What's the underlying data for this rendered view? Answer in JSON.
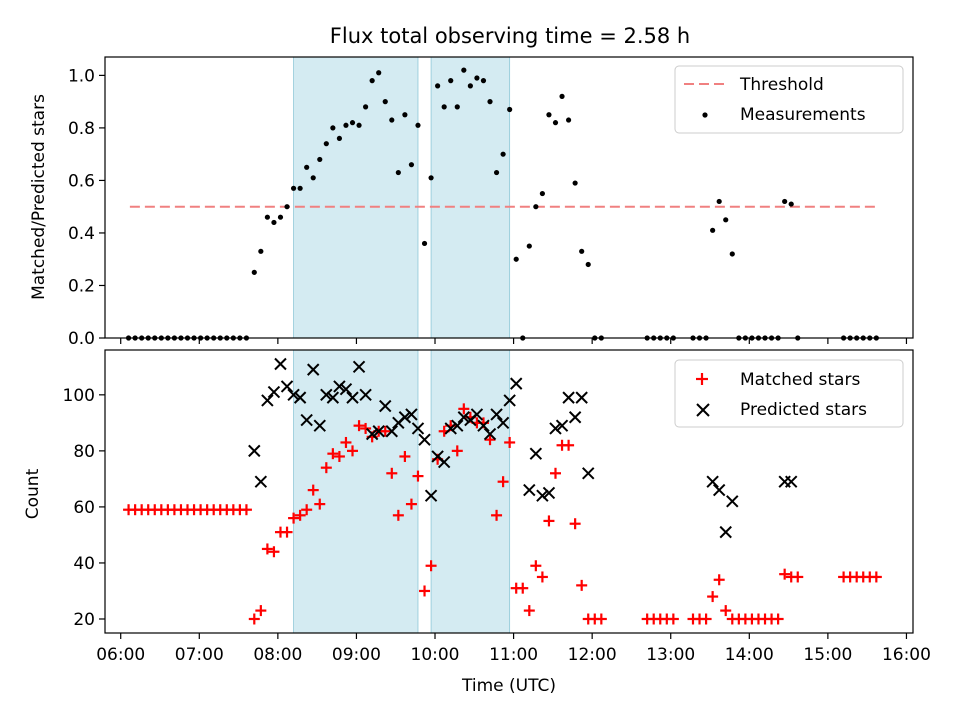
{
  "title": "Flux total observing time = 2.58 h",
  "xlabel": "Time (UTC)",
  "x_ticks": [
    "06:00",
    "07:00",
    "08:00",
    "09:00",
    "10:00",
    "11:00",
    "12:00",
    "13:00",
    "14:00",
    "15:00",
    "16:00"
  ],
  "colors": {
    "threshold": "#f08080",
    "measurement": "#000000",
    "matched": "#ff0000",
    "predicted": "#000000",
    "span": "#add8e6"
  },
  "chart_data": [
    {
      "type": "scatter",
      "ylabel": "Matched/Predicted stars",
      "xlim": [
        "05:48",
        "16:05"
      ],
      "ylim": [
        0,
        1.07
      ],
      "y_ticks": [
        "0.0",
        "0.2",
        "0.4",
        "0.6",
        "0.8",
        "1.0"
      ],
      "shaded_spans": [
        [
          "08:12",
          "09:47"
        ],
        [
          "09:57",
          "10:57"
        ]
      ],
      "threshold": {
        "name": "Threshold",
        "value": 0.5,
        "x_range": [
          "06:07",
          "15:37"
        ]
      },
      "legend": [
        "Threshold",
        "Measurements"
      ],
      "legend_position": "upper right",
      "series": [
        {
          "name": "Measurements",
          "points": [
            [
              "06:06",
              0
            ],
            [
              "06:11",
              0
            ],
            [
              "06:16",
              0
            ],
            [
              "06:21",
              0
            ],
            [
              "06:26",
              0
            ],
            [
              "06:31",
              0
            ],
            [
              "06:36",
              0
            ],
            [
              "06:41",
              0
            ],
            [
              "06:46",
              0
            ],
            [
              "06:51",
              0
            ],
            [
              "06:56",
              0
            ],
            [
              "07:01",
              0
            ],
            [
              "07:06",
              0
            ],
            [
              "07:11",
              0
            ],
            [
              "07:16",
              0
            ],
            [
              "07:21",
              0
            ],
            [
              "07:26",
              0
            ],
            [
              "07:31",
              0
            ],
            [
              "07:36",
              0
            ],
            [
              "07:42",
              0.25
            ],
            [
              "07:47",
              0.33
            ],
            [
              "07:52",
              0.46
            ],
            [
              "07:57",
              0.44
            ],
            [
              "08:02",
              0.46
            ],
            [
              "08:07",
              0.5
            ],
            [
              "08:12",
              0.57
            ],
            [
              "08:17",
              0.57
            ],
            [
              "08:22",
              0.65
            ],
            [
              "08:27",
              0.61
            ],
            [
              "08:32",
              0.68
            ],
            [
              "08:37",
              0.74
            ],
            [
              "08:42",
              0.8
            ],
            [
              "08:47",
              0.76
            ],
            [
              "08:52",
              0.81
            ],
            [
              "08:57",
              0.82
            ],
            [
              "09:02",
              0.81
            ],
            [
              "09:07",
              0.88
            ],
            [
              "09:12",
              0.98
            ],
            [
              "09:17",
              1.01
            ],
            [
              "09:22",
              0.9
            ],
            [
              "09:27",
              0.83
            ],
            [
              "09:32",
              0.63
            ],
            [
              "09:37",
              0.85
            ],
            [
              "09:42",
              0.66
            ],
            [
              "09:47",
              0.81
            ],
            [
              "09:52",
              0.36
            ],
            [
              "09:57",
              0.61
            ],
            [
              "10:02",
              0.96
            ],
            [
              "10:07",
              0.88
            ],
            [
              "10:12",
              0.98
            ],
            [
              "10:17",
              0.88
            ],
            [
              "10:22",
              1.02
            ],
            [
              "10:27",
              0.96
            ],
            [
              "10:32",
              0.99
            ],
            [
              "10:37",
              0.98
            ],
            [
              "10:42",
              0.9
            ],
            [
              "10:47",
              0.63
            ],
            [
              "10:52",
              0.7
            ],
            [
              "10:57",
              0.87
            ],
            [
              "11:02",
              0.3
            ],
            [
              "11:07",
              0
            ],
            [
              "11:12",
              0.35
            ],
            [
              "11:17",
              0.5
            ],
            [
              "11:22",
              0.55
            ],
            [
              "11:27",
              0.85
            ],
            [
              "11:32",
              0.82
            ],
            [
              "11:37",
              0.92
            ],
            [
              "11:42",
              0.83
            ],
            [
              "11:47",
              0.59
            ],
            [
              "11:52",
              0.33
            ],
            [
              "11:57",
              0.28
            ],
            [
              "12:02",
              0
            ],
            [
              "12:07",
              0
            ],
            [
              "12:42",
              0
            ],
            [
              "12:47",
              0
            ],
            [
              "12:52",
              0
            ],
            [
              "12:57",
              0
            ],
            [
              "13:02",
              0
            ],
            [
              "13:17",
              0
            ],
            [
              "13:22",
              0
            ],
            [
              "13:27",
              0
            ],
            [
              "13:32",
              0.41
            ],
            [
              "13:37",
              0.52
            ],
            [
              "13:42",
              0.45
            ],
            [
              "13:47",
              0.32
            ],
            [
              "13:52",
              0
            ],
            [
              "13:57",
              0
            ],
            [
              "14:02",
              0
            ],
            [
              "14:07",
              0
            ],
            [
              "14:12",
              0
            ],
            [
              "14:17",
              0
            ],
            [
              "14:22",
              0
            ],
            [
              "14:27",
              0.52
            ],
            [
              "14:32",
              0.51
            ],
            [
              "14:37",
              0
            ],
            [
              "15:12",
              0
            ],
            [
              "15:17",
              0
            ],
            [
              "15:22",
              0
            ],
            [
              "15:27",
              0
            ],
            [
              "15:32",
              0
            ],
            [
              "15:37",
              0
            ]
          ]
        }
      ]
    },
    {
      "type": "scatter",
      "ylabel": "Count",
      "xlim": [
        "05:48",
        "16:05"
      ],
      "ylim": [
        15,
        116
      ],
      "y_ticks": [
        "20",
        "40",
        "60",
        "80",
        "100"
      ],
      "shaded_spans": [
        [
          "08:12",
          "09:47"
        ],
        [
          "09:57",
          "10:57"
        ]
      ],
      "legend": [
        "Matched stars",
        "Predicted stars"
      ],
      "legend_position": "upper right",
      "series": [
        {
          "name": "Matched stars",
          "marker": "plus",
          "points": [
            [
              "06:06",
              59
            ],
            [
              "06:11",
              59
            ],
            [
              "06:16",
              59
            ],
            [
              "06:21",
              59
            ],
            [
              "06:26",
              59
            ],
            [
              "06:31",
              59
            ],
            [
              "06:36",
              59
            ],
            [
              "06:41",
              59
            ],
            [
              "06:46",
              59
            ],
            [
              "06:51",
              59
            ],
            [
              "06:56",
              59
            ],
            [
              "07:01",
              59
            ],
            [
              "07:06",
              59
            ],
            [
              "07:11",
              59
            ],
            [
              "07:16",
              59
            ],
            [
              "07:21",
              59
            ],
            [
              "07:26",
              59
            ],
            [
              "07:31",
              59
            ],
            [
              "07:36",
              59
            ],
            [
              "07:42",
              20
            ],
            [
              "07:47",
              23
            ],
            [
              "07:52",
              45
            ],
            [
              "07:57",
              44
            ],
            [
              "08:02",
              51
            ],
            [
              "08:07",
              51
            ],
            [
              "08:12",
              56
            ],
            [
              "08:17",
              57
            ],
            [
              "08:22",
              59
            ],
            [
              "08:27",
              66
            ],
            [
              "08:32",
              61
            ],
            [
              "08:37",
              74
            ],
            [
              "08:42",
              79
            ],
            [
              "08:47",
              78
            ],
            [
              "08:52",
              83
            ],
            [
              "08:57",
              80
            ],
            [
              "09:02",
              89
            ],
            [
              "09:07",
              88
            ],
            [
              "09:12",
              85
            ],
            [
              "09:17",
              87
            ],
            [
              "09:22",
              87
            ],
            [
              "09:27",
              72
            ],
            [
              "09:32",
              57
            ],
            [
              "09:37",
              78
            ],
            [
              "09:42",
              61
            ],
            [
              "09:47",
              71
            ],
            [
              "09:52",
              30
            ],
            [
              "09:57",
              39
            ],
            [
              "10:02",
              77
            ],
            [
              "10:07",
              87
            ],
            [
              "10:12",
              89
            ],
            [
              "10:17",
              80
            ],
            [
              "10:22",
              95
            ],
            [
              "10:27",
              92
            ],
            [
              "10:32",
              90
            ],
            [
              "10:37",
              90
            ],
            [
              "10:42",
              84
            ],
            [
              "10:47",
              57
            ],
            [
              "10:52",
              69
            ],
            [
              "10:57",
              83
            ],
            [
              "11:02",
              31
            ],
            [
              "11:07",
              31
            ],
            [
              "11:12",
              23
            ],
            [
              "11:17",
              39
            ],
            [
              "11:22",
              35
            ],
            [
              "11:27",
              55
            ],
            [
              "11:32",
              72
            ],
            [
              "11:37",
              82
            ],
            [
              "11:42",
              82
            ],
            [
              "11:47",
              54
            ],
            [
              "11:52",
              32
            ],
            [
              "11:57",
              20
            ],
            [
              "12:02",
              20
            ],
            [
              "12:07",
              20
            ],
            [
              "12:42",
              20
            ],
            [
              "12:47",
              20
            ],
            [
              "12:52",
              20
            ],
            [
              "12:57",
              20
            ],
            [
              "13:02",
              20
            ],
            [
              "13:17",
              20
            ],
            [
              "13:22",
              20
            ],
            [
              "13:27",
              20
            ],
            [
              "13:32",
              28
            ],
            [
              "13:37",
              34
            ],
            [
              "13:42",
              23
            ],
            [
              "13:47",
              20
            ],
            [
              "13:52",
              20
            ],
            [
              "13:57",
              20
            ],
            [
              "14:02",
              20
            ],
            [
              "14:07",
              20
            ],
            [
              "14:12",
              20
            ],
            [
              "14:17",
              20
            ],
            [
              "14:22",
              20
            ],
            [
              "14:27",
              36
            ],
            [
              "14:32",
              35
            ],
            [
              "14:37",
              35
            ],
            [
              "15:12",
              35
            ],
            [
              "15:17",
              35
            ],
            [
              "15:22",
              35
            ],
            [
              "15:27",
              35
            ],
            [
              "15:32",
              35
            ],
            [
              "15:37",
              35
            ]
          ]
        },
        {
          "name": "Predicted stars",
          "marker": "x",
          "points": [
            [
              "07:42",
              80
            ],
            [
              "07:47",
              69
            ],
            [
              "07:52",
              98
            ],
            [
              "07:57",
              101
            ],
            [
              "08:02",
              111
            ],
            [
              "08:07",
              103
            ],
            [
              "08:12",
              100
            ],
            [
              "08:17",
              99
            ],
            [
              "08:22",
              91
            ],
            [
              "08:27",
              109
            ],
            [
              "08:32",
              89
            ],
            [
              "08:37",
              100
            ],
            [
              "08:42",
              99
            ],
            [
              "08:47",
              103
            ],
            [
              "08:52",
              102
            ],
            [
              "08:57",
              99
            ],
            [
              "09:02",
              110
            ],
            [
              "09:07",
              100
            ],
            [
              "09:12",
              86
            ],
            [
              "09:17",
              87
            ],
            [
              "09:22",
              96
            ],
            [
              "09:27",
              87
            ],
            [
              "09:32",
              90
            ],
            [
              "09:37",
              92
            ],
            [
              "09:42",
              93
            ],
            [
              "09:47",
              88
            ],
            [
              "09:52",
              84
            ],
            [
              "09:57",
              64
            ],
            [
              "10:02",
              78
            ],
            [
              "10:07",
              76
            ],
            [
              "10:12",
              88
            ],
            [
              "10:17",
              89
            ],
            [
              "10:22",
              92
            ],
            [
              "10:27",
              91
            ],
            [
              "10:32",
              93
            ],
            [
              "10:37",
              89
            ],
            [
              "10:42",
              86
            ],
            [
              "10:47",
              93
            ],
            [
              "10:52",
              90
            ],
            [
              "10:57",
              98
            ],
            [
              "11:02",
              104
            ],
            [
              "11:12",
              66
            ],
            [
              "11:17",
              79
            ],
            [
              "11:22",
              64
            ],
            [
              "11:27",
              65
            ],
            [
              "11:32",
              88
            ],
            [
              "11:37",
              89
            ],
            [
              "11:42",
              99
            ],
            [
              "11:47",
              92
            ],
            [
              "11:52",
              99
            ],
            [
              "11:57",
              72
            ],
            [
              "13:32",
              69
            ],
            [
              "13:37",
              66
            ],
            [
              "13:42",
              51
            ],
            [
              "13:47",
              62
            ],
            [
              "14:27",
              69
            ],
            [
              "14:32",
              69
            ]
          ]
        }
      ]
    }
  ]
}
